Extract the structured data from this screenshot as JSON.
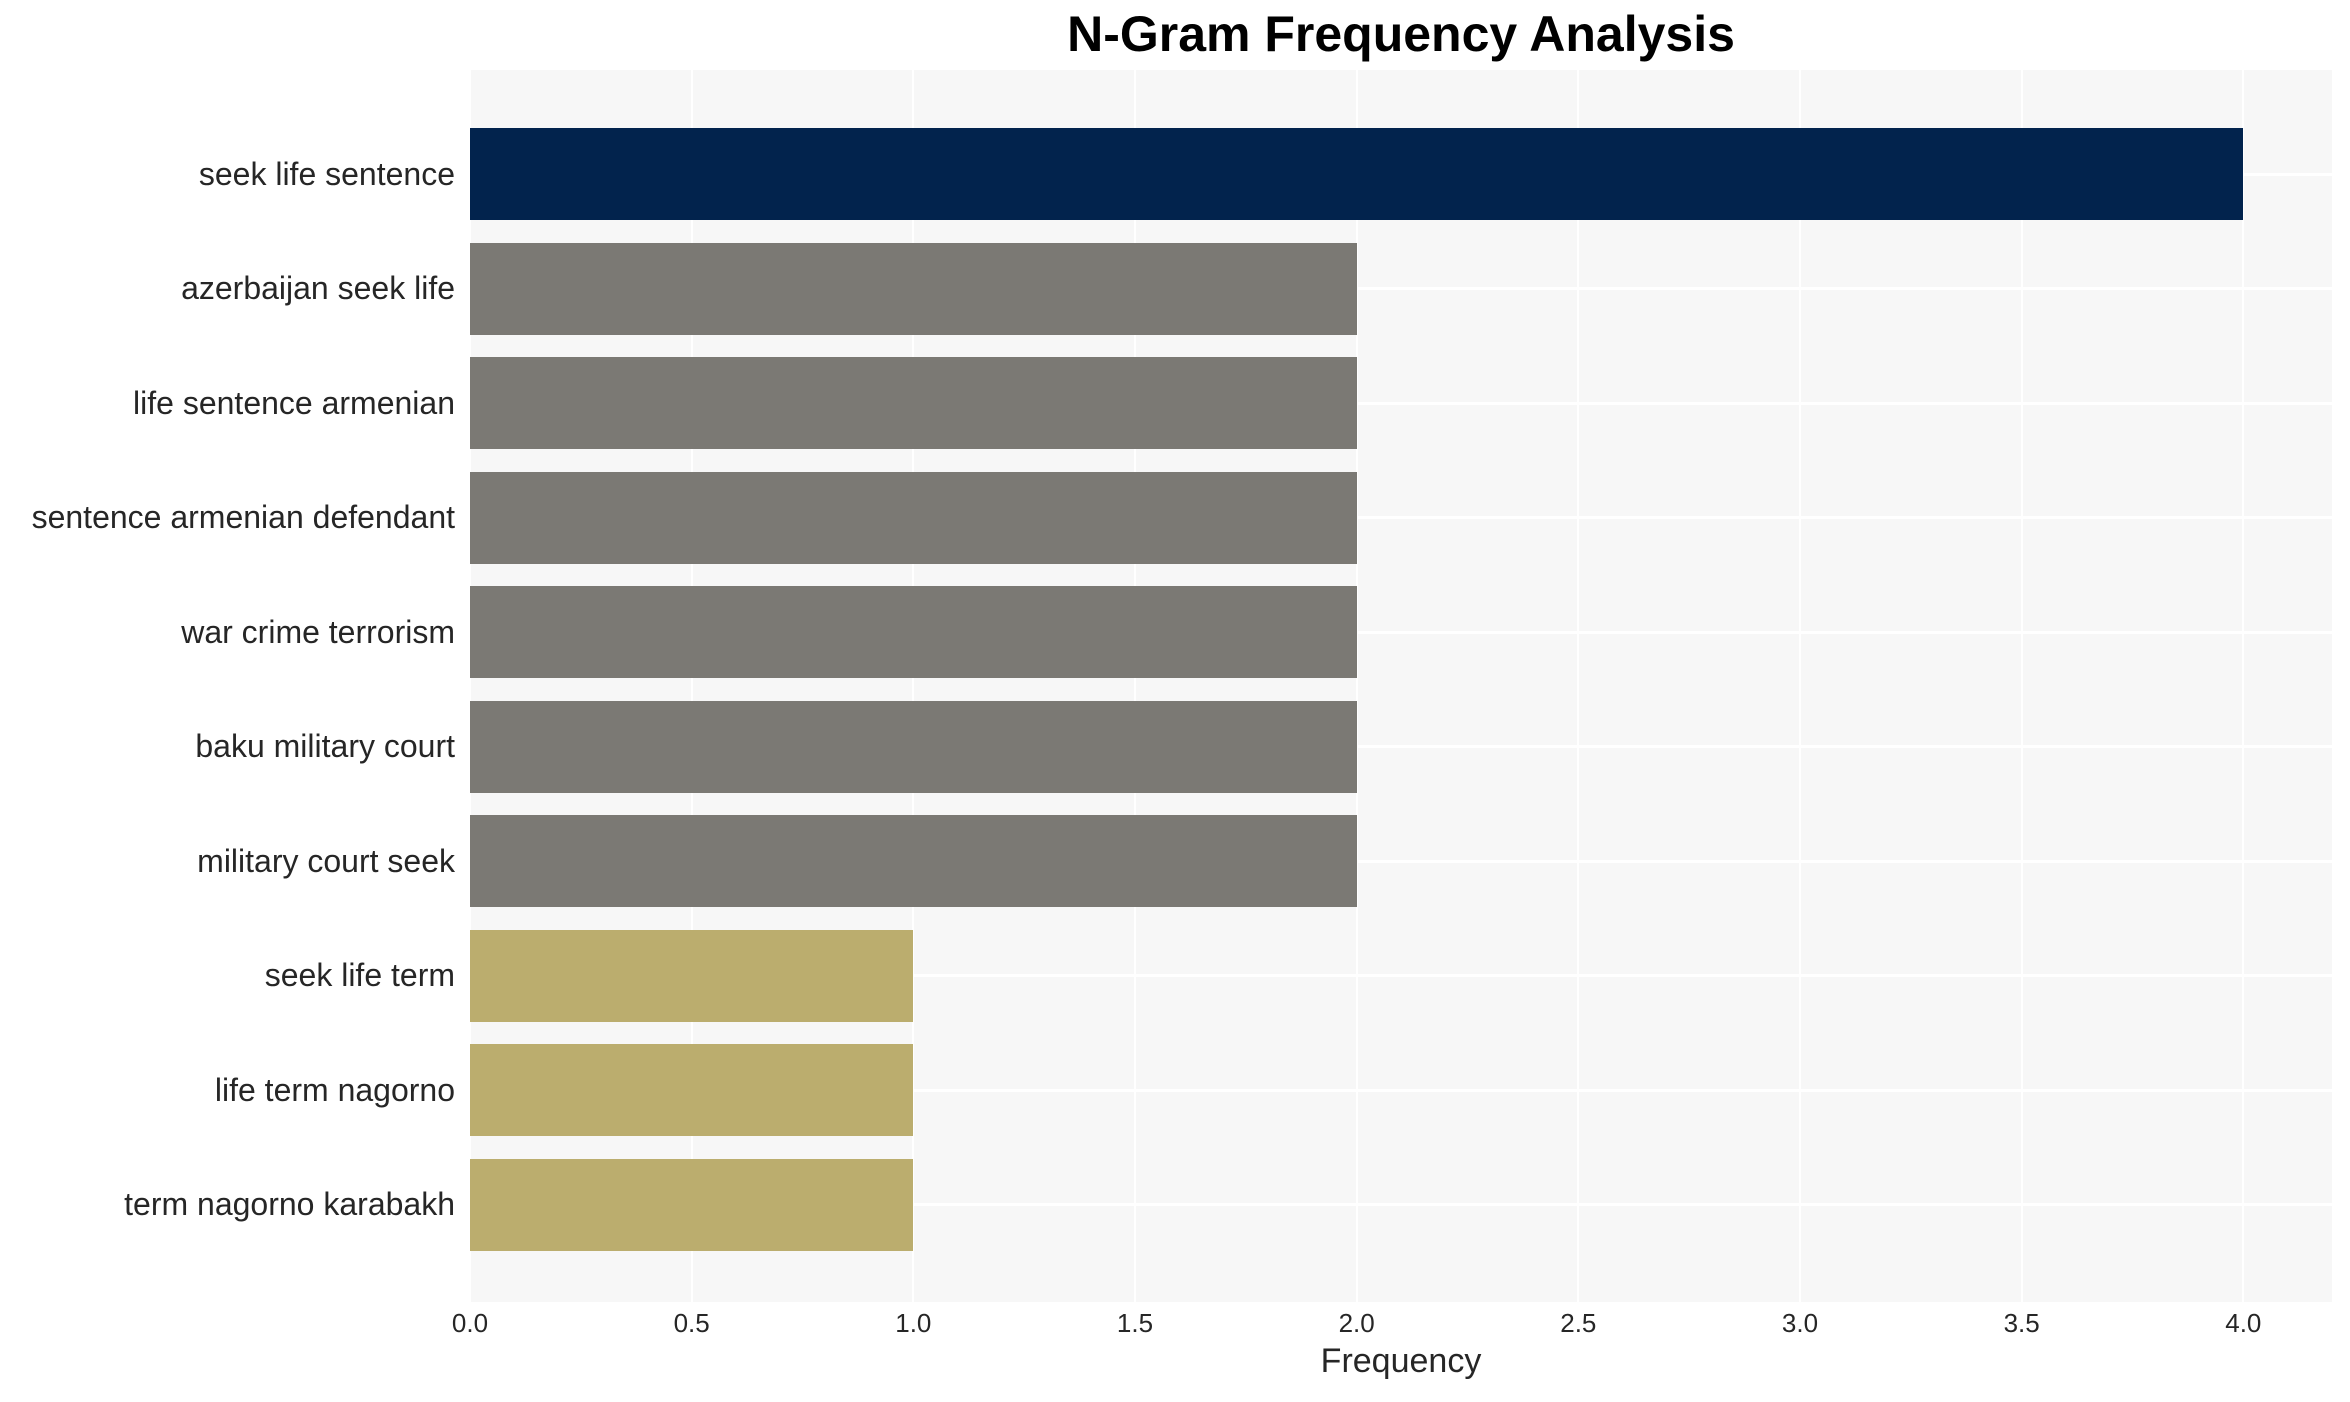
{
  "chart_data": {
    "type": "bar",
    "orientation": "horizontal",
    "title": "N-Gram Frequency Analysis",
    "xlabel": "Frequency",
    "ylabel": "",
    "categories": [
      "seek life sentence",
      "azerbaijan seek life",
      "life sentence armenian",
      "sentence armenian defendant",
      "war crime terrorism",
      "baku military court",
      "military court seek",
      "seek life term",
      "life term nagorno",
      "term nagorno karabakh"
    ],
    "values": [
      4,
      2,
      2,
      2,
      2,
      2,
      2,
      1,
      1,
      1
    ],
    "bar_colors": [
      "#02234d",
      "#7b7974",
      "#7b7974",
      "#7b7974",
      "#7b7974",
      "#7b7974",
      "#7b7974",
      "#bbad6e",
      "#bbad6e",
      "#bbad6e"
    ],
    "xlim": [
      0,
      4.2
    ],
    "xticks": [
      0.0,
      0.5,
      1.0,
      1.5,
      2.0,
      2.5,
      3.0,
      3.5,
      4.0
    ],
    "xtick_labels": [
      "0.0",
      "0.5",
      "1.0",
      "1.5",
      "2.0",
      "2.5",
      "3.0",
      "3.5",
      "4.0"
    ],
    "grid": "on",
    "gridline_color": "#ffffff",
    "plot_background": "#f7f7f7",
    "figure_background": "#ffffff",
    "text_color": "#262626",
    "title_color": "#000000",
    "legend": "none"
  }
}
